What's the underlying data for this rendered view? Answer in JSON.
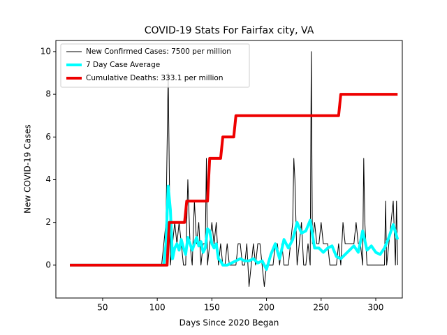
{
  "chart_data": {
    "type": "line",
    "title": "COVID-19 Stats For Fairfax city, VA",
    "xlabel": "Days Since 2020 Began",
    "ylabel": "New COVID-19 Cases",
    "xlim": [
      7.2,
      324.3
    ],
    "ylim": [
      -1.54,
      10.52
    ],
    "xticks": [
      50,
      100,
      150,
      200,
      250,
      300
    ],
    "yticks": [
      0,
      2,
      4,
      6,
      8,
      10
    ],
    "legend": "upper left",
    "series": [
      {
        "name": "New Confirmed Cases: 7500 per million",
        "color": "#000000",
        "x": [
          20,
          104,
          106,
          108,
          110,
          112,
          114,
          116,
          118,
          120,
          122,
          124,
          126,
          128,
          130,
          132,
          134,
          136,
          138,
          140,
          142,
          144,
          145,
          146,
          148,
          150,
          152,
          154,
          156,
          158,
          160,
          162,
          164,
          166,
          168,
          170,
          172,
          174,
          176,
          178,
          180,
          182,
          184,
          186,
          188,
          190,
          192,
          194,
          196,
          198,
          200,
          202,
          204,
          206,
          208,
          210,
          212,
          214,
          216,
          218,
          220,
          222,
          224,
          225,
          226,
          228,
          230,
          232,
          234,
          236,
          238,
          240,
          241,
          242,
          244,
          246,
          248,
          250,
          252,
          254,
          256,
          258,
          260,
          262,
          264,
          266,
          268,
          270,
          272,
          274,
          276,
          278,
          280,
          282,
          284,
          286,
          288,
          289,
          290,
          292,
          294,
          296,
          298,
          300,
          302,
          304,
          306,
          308,
          309,
          310,
          312,
          314,
          316,
          318,
          319,
          320
        ],
        "values": [
          0,
          0,
          1,
          2,
          9,
          0,
          1,
          2,
          1,
          2,
          1,
          0,
          0,
          4,
          1,
          0,
          3,
          1,
          2,
          0,
          1,
          1,
          5,
          0,
          1,
          2,
          1,
          2,
          0,
          1,
          0,
          0,
          1,
          0,
          0,
          0,
          0,
          1,
          1,
          0,
          0,
          1,
          -1,
          0,
          1,
          0,
          1,
          1,
          0,
          -1,
          0,
          0,
          0,
          0,
          1,
          1,
          0,
          1,
          0,
          0,
          0,
          1,
          2,
          5,
          4,
          0,
          1,
          2,
          0,
          0,
          1,
          0,
          10,
          1,
          2,
          1,
          1,
          2,
          1,
          1,
          1,
          0,
          0,
          0,
          0,
          1,
          0,
          2,
          1,
          1,
          1,
          1,
          1,
          2,
          1,
          1,
          0,
          5,
          2,
          0,
          0,
          0,
          0,
          0,
          0,
          0,
          0,
          0,
          3,
          0,
          1,
          2,
          3,
          0,
          3,
          0
        ]
      },
      {
        "name": "7 Day Case Average",
        "color": "#00ffff",
        "x": [
          20,
          106,
          108,
          110,
          112,
          114,
          116,
          118,
          120,
          122,
          124,
          126,
          128,
          130,
          132,
          134,
          136,
          138,
          140,
          142,
          144,
          146,
          148,
          150,
          152,
          154,
          156,
          158,
          160,
          164,
          168,
          172,
          176,
          180,
          184,
          188,
          192,
          196,
          200,
          204,
          208,
          212,
          216,
          220,
          224,
          228,
          232,
          236,
          240,
          244,
          248,
          252,
          256,
          260,
          264,
          268,
          272,
          276,
          280,
          284,
          288,
          292,
          296,
          300,
          304,
          308,
          312,
          316,
          320
        ],
        "values": [
          0,
          0,
          1,
          3.7,
          2.6,
          0.3,
          0.8,
          1,
          0.7,
          1.2,
          0.8,
          0.5,
          1.3,
          1,
          0.7,
          1,
          1.3,
          0.9,
          1.1,
          0.6,
          0.8,
          1.7,
          1.6,
          1,
          0.8,
          1,
          0.3,
          0.2,
          0,
          0,
          0.1,
          0.2,
          0.3,
          0.2,
          0.2,
          0.3,
          0.1,
          0.2,
          -0.2,
          0.5,
          1,
          0.3,
          1.2,
          0.8,
          1.2,
          2,
          1.5,
          1.6,
          2.1,
          0.8,
          0.8,
          0.6,
          0.8,
          0.9,
          0.4,
          0.3,
          0.5,
          0.7,
          0.9,
          0.6,
          1.6,
          0.7,
          0.9,
          0.6,
          0.5,
          0.8,
          1.3,
          1.9,
          1.2
        ]
      },
      {
        "name": "Cumulative Deaths: 333.1 per million",
        "color": "#ee0000",
        "x": [
          20,
          109,
          111,
          125,
          127,
          146,
          148,
          158,
          160,
          170,
          172,
          266,
          268,
          320
        ],
        "values": [
          0,
          0,
          2,
          2,
          3,
          3,
          5,
          5,
          6,
          6,
          7,
          7,
          8,
          8
        ]
      }
    ]
  }
}
